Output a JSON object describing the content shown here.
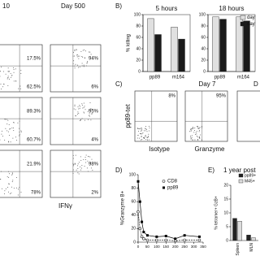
{
  "panel_a": {
    "day_left": "10",
    "day_right": "Day 500",
    "x_label": "IFNγ",
    "rows": [
      {
        "left_upper": "17.5%",
        "left_lower": "62.5%",
        "right_upper": "94%",
        "right_lower": "6%"
      },
      {
        "left_upper": "89.3%",
        "left_lower": "60.7%",
        "right_upper": "95%",
        "right_lower": "4%"
      },
      {
        "left_upper": "21.9%",
        "left_lower": "78%",
        "right_upper": "98%",
        "right_lower": "2%"
      }
    ]
  },
  "panel_b": {
    "letter": "B)",
    "type": "bar",
    "y_label": "% killing",
    "ylim": [
      0,
      100
    ],
    "yticks": [
      0,
      20,
      40,
      60,
      80,
      100
    ],
    "categories": [
      "pp89",
      "m164"
    ],
    "series": [
      {
        "name": "day",
        "color": "#e0e0e0"
      },
      {
        "name": "day",
        "color": "#1a1a1a"
      }
    ],
    "charts": [
      {
        "title": "5 hours",
        "values": [
          [
            93,
            78
          ],
          [
            65,
            57
          ]
        ]
      },
      {
        "title": "18 hours",
        "values": [
          [
            96,
            96
          ],
          [
            92,
            89
          ]
        ]
      }
    ]
  },
  "panel_c": {
    "letter": "C)",
    "y_label": "pp89-tet",
    "day_label": "Day 7",
    "cut_label": "D",
    "plot_labels": [
      "8%",
      "95%"
    ],
    "x_labels": [
      "Isotype",
      "Granzyme"
    ]
  },
  "panel_d": {
    "letter": "D)",
    "type": "line",
    "y_label": "%Granzyme B+",
    "xlim": [
      0,
      350
    ],
    "xticks": [
      0,
      50,
      100,
      150,
      200,
      250,
      300,
      350
    ],
    "ylim": [
      0,
      100
    ],
    "yticks": [
      0,
      20,
      40,
      60,
      80,
      100
    ],
    "x": [
      0,
      10,
      20,
      30,
      50,
      100,
      150,
      200,
      250,
      330
    ],
    "series": [
      {
        "name": "CD8",
        "color": "#222222",
        "values": [
          45,
          20,
          8,
          5,
          3,
          3,
          3,
          2,
          3,
          3
        ]
      },
      {
        "name": "pp89",
        "color": "#000000",
        "values": [
          90,
          60,
          30,
          15,
          10,
          8,
          9,
          5,
          10,
          8
        ]
      }
    ]
  },
  "panel_e": {
    "letter": "E)",
    "type": "bar",
    "title": "1 year post",
    "y_label": "% tetramer+ GzB+",
    "ylim": [
      0,
      20
    ],
    "yticks": [
      0,
      5,
      10,
      15,
      20
    ],
    "categories": [
      "Spleen",
      "MLN"
    ],
    "series": [
      {
        "name": "pp89+",
        "color": "#222222",
        "values": [
          8,
          2
        ]
      },
      {
        "name": "M45+",
        "color": "#dddddd",
        "values": [
          7,
          1
        ]
      }
    ]
  }
}
